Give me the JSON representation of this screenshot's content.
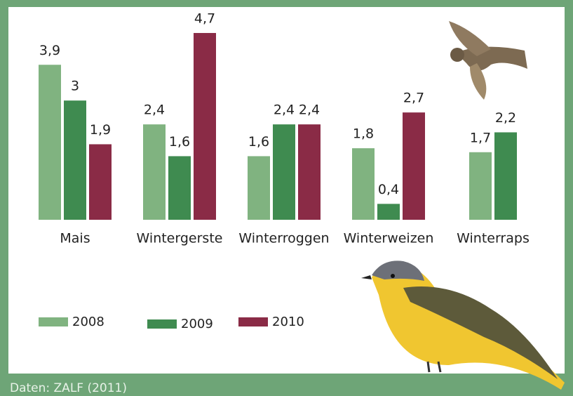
{
  "chart_data": {
    "type": "bar",
    "categories": [
      "Mais",
      "Wintergerste",
      "Winterroggen",
      "Winterweizen",
      "Winterraps"
    ],
    "series": [
      {
        "name": "2008",
        "color": "#80b380",
        "values": [
          3.9,
          2.4,
          1.6,
          1.8,
          1.7
        ],
        "value_labels": [
          "3,9",
          "2,4",
          "1,6",
          "1,8",
          "1,7"
        ]
      },
      {
        "name": "2009",
        "color": "#3f8b50",
        "values": [
          3,
          1.6,
          2.4,
          0.4,
          2.2
        ],
        "value_labels": [
          "3",
          "1,6",
          "2,4",
          "0,4",
          "2,2"
        ]
      },
      {
        "name": "2010",
        "color": "#8a2b46",
        "values": [
          1.9,
          4.7,
          2.4,
          2.7,
          null
        ],
        "value_labels": [
          "1,9",
          "4,7",
          "2,4",
          "2,7",
          null
        ]
      }
    ],
    "source": "Daten: ZALF (2011)"
  }
}
